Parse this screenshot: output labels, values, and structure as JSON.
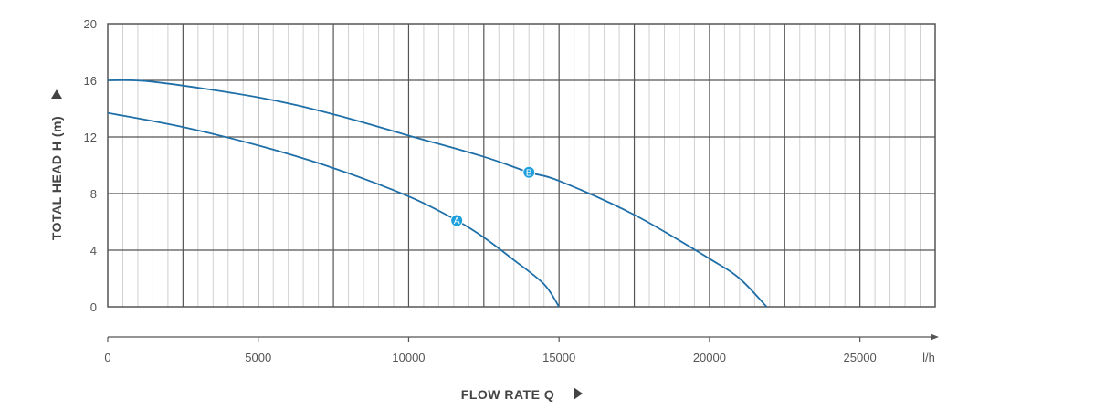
{
  "chart_data": {
    "type": "line",
    "xlabel": "FLOW RATE Q",
    "ylabel": "TOTAL HEAD H (m)",
    "x_unit": "l/h",
    "xlim": [
      0,
      27500
    ],
    "ylim": [
      0,
      20
    ],
    "x_ticks": [
      "0",
      "5000",
      "10000",
      "15000",
      "20000",
      "25000"
    ],
    "y_ticks": [
      "0",
      "4",
      "8",
      "12",
      "16",
      "20"
    ],
    "grid": true,
    "series": [
      {
        "name": "A",
        "x": [
          0,
          2500,
          5000,
          7500,
          10000,
          11600,
          12500,
          13500,
          14500,
          15000
        ],
        "y": [
          13.7,
          12.7,
          11.4,
          9.8,
          7.8,
          6.1,
          4.9,
          3.3,
          1.6,
          0
        ],
        "marker": {
          "x": 11600,
          "y": 6.1
        }
      },
      {
        "name": "B",
        "x": [
          0,
          1500,
          5000,
          7500,
          10000,
          12500,
          14000,
          15000,
          17500,
          20000,
          21000,
          21900
        ],
        "y": [
          16,
          15.9,
          14.8,
          13.6,
          12.1,
          10.6,
          9.5,
          8.9,
          6.5,
          3.4,
          2.0,
          0
        ],
        "marker": {
          "x": 14000,
          "y": 9.5
        }
      }
    ],
    "colors": {
      "line": "#1f6fa8",
      "marker": "#1ea0dc",
      "grid_major": "#555555",
      "grid_minor": "#d0d0d0",
      "axis": "#555555",
      "arrow": "#444444"
    }
  }
}
